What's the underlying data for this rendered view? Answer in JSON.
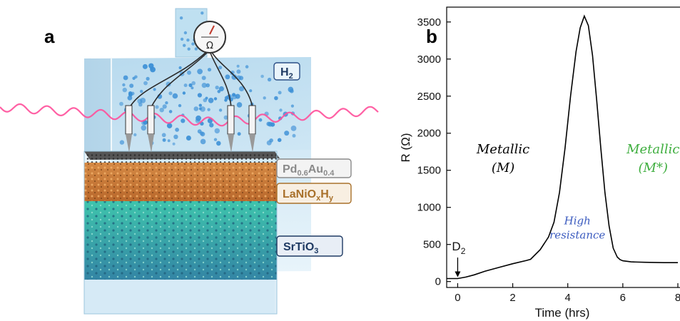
{
  "figure": {
    "panel_a_label": "a",
    "panel_b_label": "b"
  },
  "illustration": {
    "meter_symbol": "Ω",
    "gas_label": "H",
    "gas_sub": "2",
    "layers": [
      {
        "name": "Pd",
        "sub1": "0.6",
        "mid": "Au",
        "sub2": "0.4",
        "color": "#8a8a8a"
      },
      {
        "name": "LaNiO",
        "sub1": "x",
        "mid": "H",
        "sub2": "y",
        "color": "#a8702a"
      },
      {
        "name": "SrTiO",
        "sub1": "3",
        "mid": "",
        "sub2": "",
        "color": "#1f3a63"
      }
    ],
    "colors": {
      "gas_box": "#cfe6f3",
      "metal_layer": "#4a4a4a",
      "nickelate_layer": "#c8783a",
      "substrate_layer": "#2fb8a0",
      "light_wave": "#ff4f9a",
      "h2_bubbles": "#3b8fd6"
    },
    "icons": [
      "ohmmeter-icon",
      "probe-icon",
      "light-wave-icon"
    ]
  },
  "chart_data": {
    "type": "line",
    "xlabel": "Time (hrs)",
    "ylabel": "R (Ω)",
    "xlim": [
      -0.4,
      8
    ],
    "ylim": [
      -80,
      3700
    ],
    "xticks": [
      0,
      2,
      4,
      6,
      8
    ],
    "xtick_labels": [
      "0",
      "2",
      "4",
      "6",
      "8"
    ],
    "yticks": [
      0,
      500,
      1000,
      1500,
      2000,
      2500,
      3000,
      3500
    ],
    "ytick_labels": [
      "0",
      "500",
      "1000",
      "1500",
      "2000",
      "2500",
      "3000",
      "3500"
    ],
    "grid": false,
    "series": [
      {
        "color": "#000000",
        "x": [
          -0.4,
          0,
          0.3,
          0.6,
          1.0,
          1.5,
          2.0,
          2.5,
          2.65,
          3.0,
          3.3,
          3.5,
          3.7,
          3.9,
          4.1,
          4.3,
          4.45,
          4.6,
          4.75,
          4.9,
          5.05,
          5.2,
          5.35,
          5.5,
          5.65,
          5.8,
          5.9,
          6.0,
          6.3,
          6.8,
          7.5,
          8.0
        ],
        "y": [
          40,
          40,
          60,
          90,
          140,
          190,
          240,
          285,
          300,
          430,
          600,
          800,
          1200,
          1800,
          2500,
          3100,
          3420,
          3580,
          3450,
          3050,
          2450,
          1800,
          1200,
          750,
          450,
          330,
          295,
          280,
          265,
          260,
          255,
          255
        ]
      }
    ],
    "annotations": [
      {
        "text": "D",
        "sub": "2",
        "x": 0,
        "y": 420,
        "arrow_to_y": 40,
        "color": "#000000"
      },
      {
        "text": "Metallic",
        "line2": "(M)",
        "x": 1.65,
        "y": 1730,
        "color": "#000000"
      },
      {
        "text": "High",
        "line2": "resistance",
        "x": 4.35,
        "y": 770,
        "color": "#3b5bbf"
      },
      {
        "text": "Metallic",
        "line2": "(M*)",
        "x": 7.1,
        "y": 1730,
        "color": "#3fae3f"
      }
    ]
  }
}
